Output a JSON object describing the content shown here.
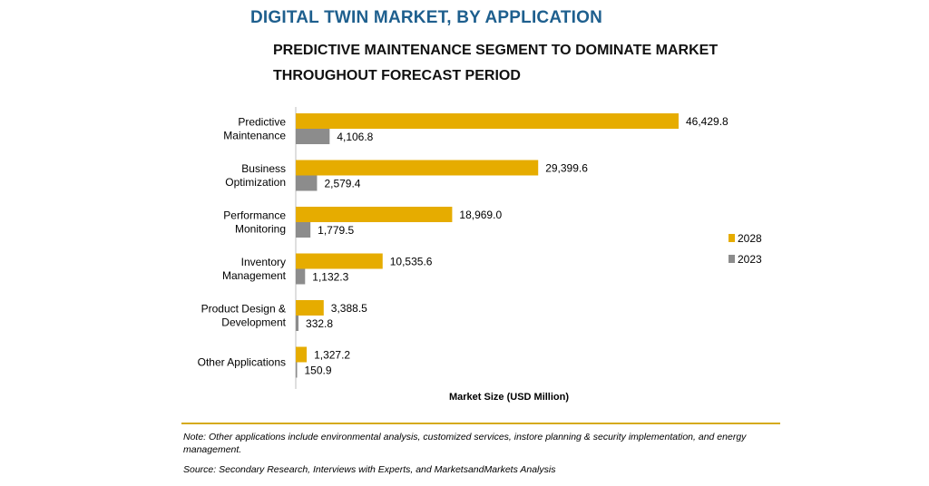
{
  "title": "DIGITAL TWIN MARKET, BY APPLICATION",
  "subtitle": "PREDICTIVE MAINTENANCE SEGMENT TO DOMINATE MARKET THROUGHOUT FORECAST PERIOD",
  "note": "Note: Other applications include environmental analysis, customized services, instore planning & security implementation, and energy management.",
  "source": "Source: Secondary Research, Interviews with Experts, and MarketsandMarkets Analysis",
  "colors": {
    "2028": "#e6ac00",
    "2023": "#8c8c8c",
    "accent": "#d5aa1c"
  },
  "chart_data": {
    "type": "bar",
    "orientation": "horizontal",
    "xlabel": "Market Size (USD Million)",
    "ylabel": "",
    "xlim": [
      0,
      50000
    ],
    "grid": false,
    "legend_position": "right",
    "categories": [
      [
        "Predictive",
        "Maintenance"
      ],
      [
        "Business",
        "Optimization"
      ],
      [
        "Performance",
        "Monitoring"
      ],
      [
        "Inventory",
        "Management"
      ],
      [
        "Product Design &",
        "Development"
      ],
      [
        "Other Applications"
      ]
    ],
    "series": [
      {
        "name": "2028",
        "values": [
          46429.8,
          29399.6,
          18969.0,
          10535.6,
          3388.5,
          1327.2
        ],
        "labels": [
          "46,429.8",
          "29,399.6",
          "18,969.0",
          "10,535.6",
          "3,388.5",
          "1,327.2"
        ]
      },
      {
        "name": "2023",
        "values": [
          4106.8,
          2579.4,
          1779.5,
          1132.3,
          332.8,
          150.9
        ],
        "labels": [
          "4,106.8",
          "2,579.4",
          "1,779.5",
          "1,132.3",
          "332.8",
          "150.9"
        ]
      }
    ]
  }
}
